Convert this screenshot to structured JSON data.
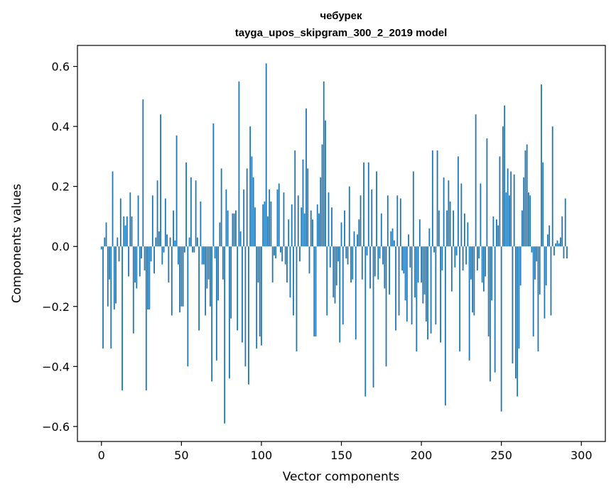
{
  "chart_data": {
    "type": "bar",
    "title": "чебурек",
    "subtitle": "tayga_upos_skipgram_300_2_2019 model",
    "xlabel": "Vector components",
    "ylabel": "Components values",
    "xlim": [
      -15,
      315
    ],
    "ylim": [
      -0.65,
      0.67
    ],
    "xticks": [
      0,
      50,
      100,
      150,
      200,
      250,
      300
    ],
    "xtick_labels": [
      "0",
      "50",
      "100",
      "150",
      "200",
      "250",
      "300"
    ],
    "yticks": [
      -0.6,
      -0.4,
      -0.2,
      0.0,
      0.2,
      0.4,
      0.6
    ],
    "ytick_labels": [
      "−0.6",
      "−0.4",
      "−0.2",
      "0.0",
      "0.2",
      "0.4",
      "0.6"
    ],
    "bar_color": "#1f77b4",
    "values": [
      -0.01,
      -0.34,
      0.03,
      0.08,
      -0.2,
      -0.11,
      -0.34,
      0.25,
      -0.21,
      -0.19,
      0.03,
      -0.05,
      0.16,
      -0.48,
      0.1,
      0.07,
      0.1,
      -0.1,
      0.18,
      0.1,
      -0.29,
      -0.12,
      -0.14,
      0.17,
      -0.1,
      -0.04,
      0.49,
      -0.08,
      -0.48,
      -0.21,
      -0.21,
      -0.05,
      0.17,
      -0.09,
      0.03,
      0.22,
      0.05,
      0.44,
      -0.06,
      -0.02,
      0.16,
      0.04,
      -0.12,
      0.03,
      -0.23,
      0.12,
      0.02,
      0.37,
      -0.06,
      -0.22,
      -0.2,
      -0.2,
      -0.02,
      0.28,
      -0.4,
      0.03,
      0.23,
      -0.02,
      -0.02,
      0.22,
      0.03,
      -0.28,
      0.15,
      -0.06,
      -0.06,
      -0.23,
      -0.14,
      -0.11,
      -0.2,
      -0.45,
      0.41,
      -0.04,
      -0.38,
      -0.18,
      0.08,
      0.26,
      -0.11,
      -0.59,
      0.19,
      0.12,
      -0.44,
      -0.24,
      0.11,
      0.11,
      0.12,
      -0.28,
      0.55,
      0.05,
      -0.32,
      0.19,
      -0.4,
      0.26,
      -0.46,
      0.4,
      0.3,
      0.23,
      0.13,
      -0.34,
      -0.12,
      -0.3,
      -0.33,
      0.14,
      0.15,
      0.61,
      0.1,
      0.19,
      0.15,
      -0.12,
      -0.03,
      -0.04,
      0.19,
      0.21,
      -0.02,
      -0.05,
      0.18,
      -0.06,
      -0.12,
      0.09,
      -0.17,
      0.14,
      -0.23,
      0.32,
      -0.35,
      0.17,
      -0.05,
      0.13,
      0.29,
      0.11,
      0.46,
      0.26,
      -0.09,
      0.12,
      0.09,
      -0.3,
      -0.3,
      0.14,
      0.11,
      0.23,
      0.34,
      0.55,
      0.42,
      -0.23,
      0.18,
      -0.07,
      0.13,
      -0.17,
      -0.19,
      -0.13,
      -0.05,
      -0.32,
      0.08,
      -0.26,
      0.12,
      -0.04,
      -0.06,
      0.2,
      -0.12,
      -0.11,
      0.05,
      -0.31,
      0.04,
      0.09,
      0.17,
      -0.11,
      0.28,
      -0.5,
      -0.03,
      0.28,
      -0.14,
      0.19,
      -0.47,
      -0.1,
      0.25,
      -0.11,
      -0.04,
      0.11,
      -0.06,
      -0.14,
      -0.4,
      0.17,
      -0.16,
      0.05,
      0.06,
      0.02,
      -0.28,
      0.17,
      -0.23,
      0.16,
      -0.08,
      -0.09,
      -0.18,
      -0.25,
      0.04,
      -0.07,
      -0.26,
      0.25,
      -0.17,
      -0.35,
      -0.12,
      0.09,
      -0.12,
      -0.19,
      -0.16,
      -0.25,
      -0.31,
      0.06,
      -0.29,
      0.32,
      -0.02,
      -0.26,
      0.32,
      0.12,
      -0.32,
      -0.08,
      0.23,
      -0.53,
      0.12,
      0.22,
      0.15,
      -0.15,
      0.12,
      -0.07,
      -0.03,
      0.3,
      -0.35,
      0.21,
      -0.08,
      0.11,
      -0.06,
      0.08,
      -0.38,
      -0.11,
      -0.22,
      -0.23,
      0.44,
      -0.08,
      -0.04,
      0.21,
      -0.12,
      -0.15,
      -0.1,
      0.36,
      -0.3,
      -0.45,
      -0.18,
      0.1,
      -0.42,
      0.09,
      0.07,
      0.3,
      -0.55,
      0.4,
      0.47,
      0.18,
      0.26,
      0.17,
      0.25,
      -0.39,
      0.24,
      -0.44,
      -0.5,
      -0.34,
      -0.13,
      0.12,
      0.23,
      0.32,
      0.34,
      0.18,
      0.17,
      -0.02,
      -0.3,
      -0.11,
      -0.05,
      -0.35,
      -0.16,
      0.54,
      0.28,
      -0.24,
      -0.13,
      0.04,
      0.07,
      -0.23,
      0.4,
      -0.03,
      0.01,
      0.02,
      0.01,
      0.03,
      0.1,
      -0.04,
      0.16,
      -0.04
    ]
  }
}
